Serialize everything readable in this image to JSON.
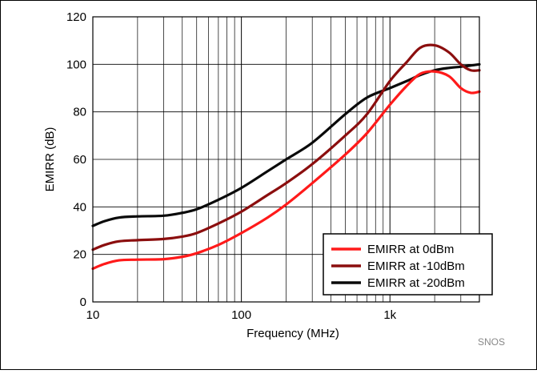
{
  "chart_data": {
    "type": "line",
    "xlabel": "Frequency (MHz)",
    "ylabel": "EMIRR (dB)",
    "x_scale": "log",
    "xlim": [
      10,
      4000
    ],
    "ylim": [
      0,
      120
    ],
    "x_ticks": [
      {
        "value": 10,
        "label": "10"
      },
      {
        "value": 100,
        "label": "100"
      },
      {
        "value": 1000,
        "label": "1k"
      }
    ],
    "y_ticks": [
      0,
      20,
      40,
      60,
      80,
      100,
      120
    ],
    "grid": true,
    "legend_position": "bottom-right",
    "watermark": "SNOS",
    "series": [
      {
        "name": "EMIRR at 0dBm",
        "color": "#ff1a1a",
        "points": [
          [
            10,
            14
          ],
          [
            12,
            16
          ],
          [
            15,
            17.5
          ],
          [
            20,
            17.8
          ],
          [
            30,
            18
          ],
          [
            40,
            19
          ],
          [
            50,
            20.5
          ],
          [
            70,
            24
          ],
          [
            100,
            29
          ],
          [
            150,
            35.5
          ],
          [
            200,
            41
          ],
          [
            300,
            50
          ],
          [
            500,
            62
          ],
          [
            700,
            71
          ],
          [
            1000,
            83
          ],
          [
            1300,
            91
          ],
          [
            1600,
            96
          ],
          [
            2000,
            97
          ],
          [
            2500,
            95
          ],
          [
            3000,
            90
          ],
          [
            3500,
            88
          ],
          [
            4000,
            88.5
          ]
        ]
      },
      {
        "name": "EMIRR at -10dBm",
        "color": "#8b0e0e",
        "points": [
          [
            10,
            22
          ],
          [
            12,
            24
          ],
          [
            15,
            25.5
          ],
          [
            20,
            26
          ],
          [
            30,
            26.5
          ],
          [
            40,
            27.5
          ],
          [
            50,
            29
          ],
          [
            70,
            33
          ],
          [
            100,
            38
          ],
          [
            150,
            45
          ],
          [
            200,
            50
          ],
          [
            300,
            58
          ],
          [
            500,
            70
          ],
          [
            700,
            79
          ],
          [
            1000,
            93
          ],
          [
            1300,
            101
          ],
          [
            1600,
            107
          ],
          [
            2000,
            108
          ],
          [
            2500,
            105
          ],
          [
            3000,
            100
          ],
          [
            3500,
            97.5
          ],
          [
            4000,
            97.5
          ]
        ]
      },
      {
        "name": "EMIRR at -20dBm",
        "color": "#0a0a0a",
        "points": [
          [
            10,
            32
          ],
          [
            12,
            34
          ],
          [
            15,
            35.5
          ],
          [
            20,
            36
          ],
          [
            30,
            36.3
          ],
          [
            40,
            37.5
          ],
          [
            50,
            39
          ],
          [
            70,
            43
          ],
          [
            100,
            48
          ],
          [
            150,
            55
          ],
          [
            200,
            60
          ],
          [
            300,
            67
          ],
          [
            500,
            79
          ],
          [
            700,
            86
          ],
          [
            1000,
            90
          ],
          [
            1300,
            93
          ],
          [
            1600,
            95.5
          ],
          [
            2000,
            97.5
          ],
          [
            2500,
            98.5
          ],
          [
            3000,
            99
          ],
          [
            3500,
            99.5
          ],
          [
            4000,
            100
          ]
        ]
      }
    ]
  }
}
